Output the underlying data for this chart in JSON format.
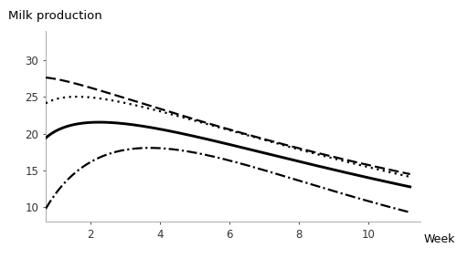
{
  "title": "Milk production",
  "xlabel": "Week",
  "xlim": [
    0.7,
    11.5
  ],
  "ylim": [
    8,
    34
  ],
  "yticks": [
    10,
    15,
    20,
    25,
    30
  ],
  "xticks": [
    2,
    4,
    6,
    8,
    10
  ],
  "background_color": "#ffffff",
  "line_color": "#000000",
  "linewidth": 1.6,
  "wem": {
    "a": 22.5,
    "b": 0.22,
    "c": 0.098
  },
  "qm": {
    "a": 29.5,
    "b": 0.04,
    "c": 0.072
  },
  "hm": {
    "a": 27.0,
    "b": 0.14,
    "c": 0.088
  },
  "im": {
    "a": 14.5,
    "b": 0.72,
    "c": 0.195
  }
}
